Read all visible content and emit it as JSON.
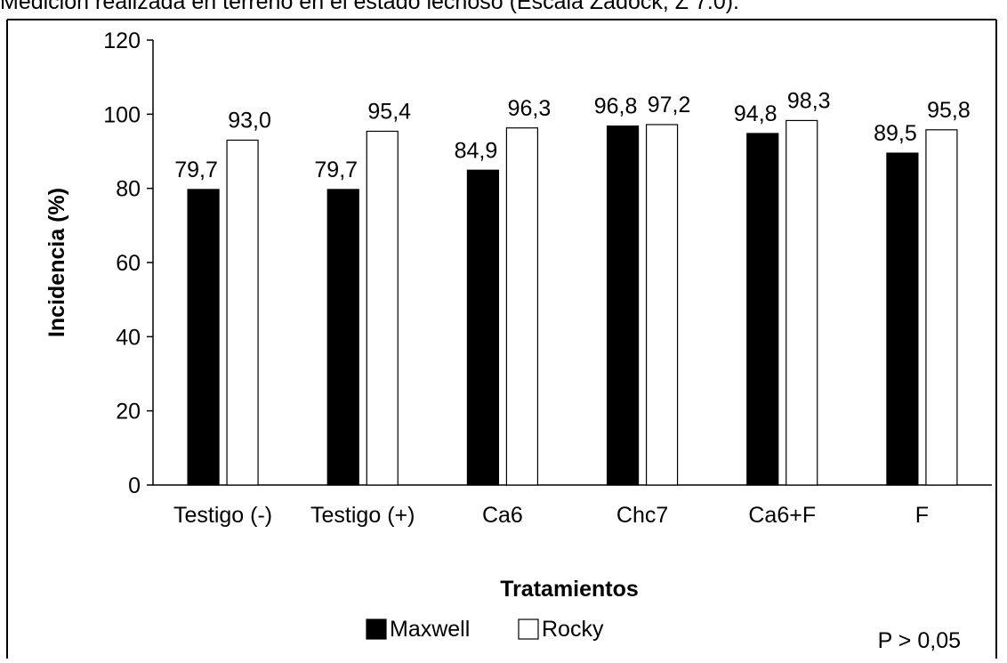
{
  "caption": "Medición realizada en terreno en el estado lechoso (Escala Zadock, Z 7.0).",
  "note": "P > 0,05",
  "colors": {
    "maxwell": "#000000",
    "rocky": "#ffffff",
    "outline": "#000000",
    "frame": "#000000"
  },
  "chart_data": {
    "type": "bar",
    "title": "",
    "xlabel": "Tratamientos",
    "ylabel": "Incidencia (%)",
    "categories": [
      "Testigo (-)",
      "Testigo (+)",
      "Ca6",
      "Chc7",
      "Ca6+F",
      "F"
    ],
    "series": [
      {
        "name": "Maxwell",
        "values": [
          79.7,
          79.7,
          84.9,
          96.8,
          94.8,
          89.5
        ],
        "labels": [
          "79,7",
          "79,7",
          "84,9",
          "96,8",
          "94,8",
          "89,5"
        ]
      },
      {
        "name": "Rocky",
        "values": [
          93.0,
          95.4,
          96.3,
          97.2,
          98.3,
          95.8
        ],
        "labels": [
          "93,0",
          "95,4",
          "96,3",
          "97,2",
          "98,3",
          "95,8"
        ]
      }
    ],
    "ylim": [
      0,
      120
    ],
    "yticks": [
      0,
      20,
      40,
      60,
      80,
      100,
      120
    ],
    "grid": false,
    "legend": "bottom-center"
  }
}
